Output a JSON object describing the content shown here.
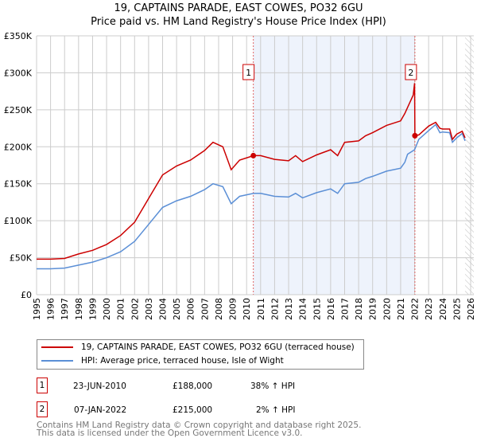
{
  "title": "19, CAPTAINS PARADE, EAST COWES, PO32 6GU",
  "subtitle": "Price paid vs. HM Land Registry's House Price Index (HPI)",
  "chart_data": {
    "type": "line",
    "title": "19, CAPTAINS PARADE, EAST COWES, PO32 6GU",
    "subtitle": "Price paid vs. HM Land Registry's House Price Index (HPI)",
    "xlim": [
      1995,
      2026
    ],
    "ylim": [
      0,
      350000
    ],
    "x_ticks": [
      "1995",
      "1996",
      "1997",
      "1998",
      "1999",
      "2000",
      "2001",
      "2002",
      "2003",
      "2004",
      "2005",
      "2006",
      "2007",
      "2008",
      "2009",
      "2010",
      "2011",
      "2012",
      "2013",
      "2014",
      "2015",
      "2016",
      "2017",
      "2018",
      "2019",
      "2020",
      "2021",
      "2022",
      "2023",
      "2024",
      "2025",
      "2026"
    ],
    "y_ticks": [
      {
        "v": 0,
        "label": "£0"
      },
      {
        "v": 50000,
        "label": "£50K"
      },
      {
        "v": 100000,
        "label": "£100K"
      },
      {
        "v": 150000,
        "label": "£150K"
      },
      {
        "v": 200000,
        "label": "£200K"
      },
      {
        "v": 250000,
        "label": "£250K"
      },
      {
        "v": 300000,
        "label": "£300K"
      },
      {
        "v": 350000,
        "label": "£350K"
      }
    ],
    "grid": true,
    "series": [
      {
        "name": "19, CAPTAINS PARADE, EAST COWES, PO32 6GU (terraced house)",
        "color": "#cc0000",
        "x": [
          1995,
          1996,
          1997,
          1998,
          1999,
          2000,
          2001,
          2002,
          2003,
          2004,
          2005,
          2006,
          2007,
          2007.6,
          2008.3,
          2008.9,
          2009.5,
          2010.5,
          2011,
          2012,
          2013,
          2013.5,
          2014,
          2015,
          2016,
          2016.5,
          2017,
          2018,
          2018.5,
          2019,
          2020,
          2021,
          2021.3,
          2021.9,
          2022.0,
          2022.02,
          2022.3,
          2023,
          2023.5,
          2023.8,
          2024,
          2024.5,
          2024.7,
          2025,
          2025.4,
          2025.6
        ],
        "y": [
          48000,
          48000,
          49000,
          55000,
          60000,
          68000,
          80000,
          98000,
          130000,
          162000,
          174000,
          182000,
          195000,
          206000,
          200000,
          169000,
          182000,
          188000,
          188000,
          183000,
          181000,
          188000,
          180000,
          189000,
          196000,
          188000,
          206000,
          208000,
          215000,
          219000,
          229000,
          235000,
          245000,
          270000,
          286000,
          215000,
          216000,
          228000,
          233000,
          225000,
          224000,
          224000,
          210000,
          217000,
          221000,
          212000
        ]
      },
      {
        "name": "HPI: Average price, terraced house, Isle of Wight",
        "color": "#5b8fd6",
        "x": [
          1995,
          1996,
          1997,
          1998,
          1999,
          2000,
          2001,
          2002,
          2003,
          2004,
          2005,
          2006,
          2007,
          2007.6,
          2008.3,
          2008.9,
          2009.5,
          2010.5,
          2011,
          2012,
          2013,
          2013.5,
          2014,
          2015,
          2016,
          2016.5,
          2017,
          2018,
          2018.5,
          2019,
          2020,
          2021,
          2021.3,
          2021.5,
          2022,
          2022.3,
          2023,
          2023.5,
          2023.8,
          2024,
          2024.5,
          2024.7,
          2025,
          2025.4,
          2025.6
        ],
        "y": [
          35000,
          35000,
          36000,
          40000,
          44000,
          50000,
          58000,
          72000,
          95000,
          118000,
          127000,
          133000,
          142000,
          150000,
          146000,
          123000,
          133000,
          137000,
          137000,
          133000,
          132000,
          137000,
          131000,
          138000,
          143000,
          137000,
          150000,
          152000,
          157000,
          160000,
          167000,
          171000,
          179000,
          190000,
          196000,
          210000,
          222000,
          230000,
          219000,
          220000,
          219000,
          206000,
          212000,
          218000,
          208000
        ]
      }
    ],
    "annotations": [
      {
        "label": "1",
        "x": 2010.48,
        "y": 188000
      },
      {
        "label": "2",
        "x": 2022.02,
        "y": 215000
      }
    ],
    "legend_position": "bottom"
  },
  "legend": {
    "items": [
      "19, CAPTAINS PARADE, EAST COWES, PO32 6GU (terraced house)",
      "HPI: Average price, terraced house, Isle of Wight"
    ]
  },
  "transactions": [
    {
      "num": "1",
      "date": "23-JUN-2010",
      "price": "£188,000",
      "hpi": "38% ↑ HPI"
    },
    {
      "num": "2",
      "date": "07-JAN-2022",
      "price": "£215,000",
      "hpi": "2% ↑ HPI"
    }
  ],
  "footer": {
    "line1": "Contains HM Land Registry data © Crown copyright and database right 2025.",
    "line2": "This data is licensed under the Open Government Licence v3.0."
  }
}
